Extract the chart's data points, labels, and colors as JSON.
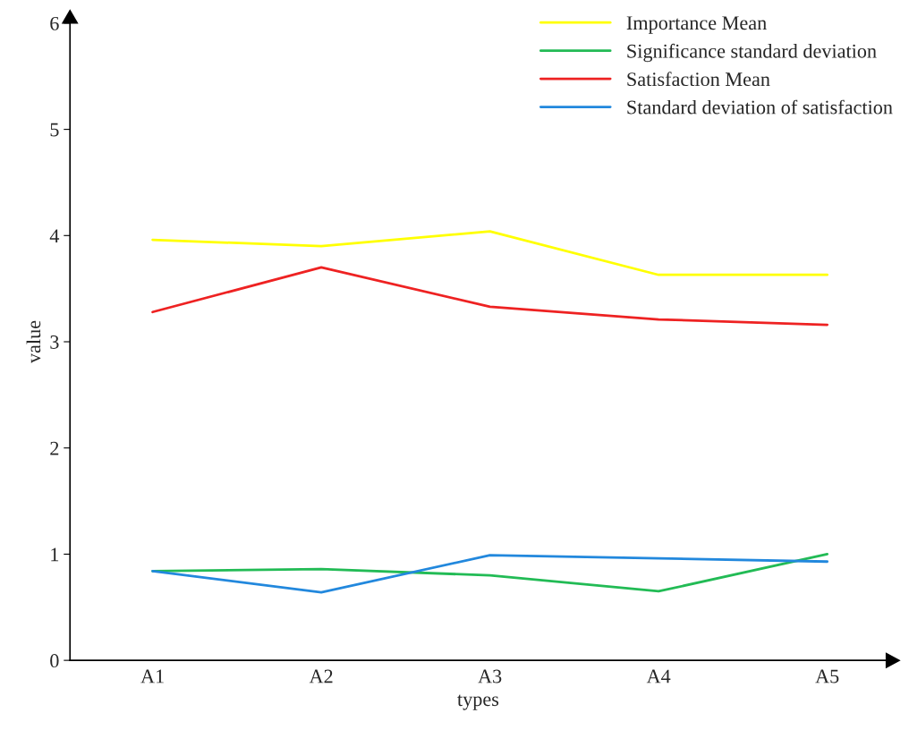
{
  "chart_data": {
    "type": "line",
    "xlabel": "types",
    "ylabel": "value",
    "categories": [
      "A1",
      "A2",
      "A3",
      "A4",
      "A5"
    ],
    "series": [
      {
        "name": "Importance Mean",
        "color": "#ffff00",
        "values": [
          3.96,
          3.9,
          4.04,
          3.63,
          3.63
        ]
      },
      {
        "name": "Significance standard deviation",
        "color": "#22bb55",
        "values": [
          0.84,
          0.86,
          0.8,
          0.65,
          1.0
        ]
      },
      {
        "name": "Satisfaction Mean",
        "color": "#ee2222",
        "values": [
          3.28,
          3.7,
          3.33,
          3.21,
          3.16
        ]
      },
      {
        "name": "Standard deviation of satisfaction",
        "color": "#2288dd",
        "values": [
          0.84,
          0.64,
          0.99,
          0.96,
          0.93
        ]
      }
    ],
    "ylim": [
      0,
      6
    ],
    "yticks": [
      0,
      1,
      2,
      3,
      4,
      5,
      6
    ],
    "grid": false,
    "legend": "top right",
    "marker": "none",
    "line_style": "solid"
  }
}
